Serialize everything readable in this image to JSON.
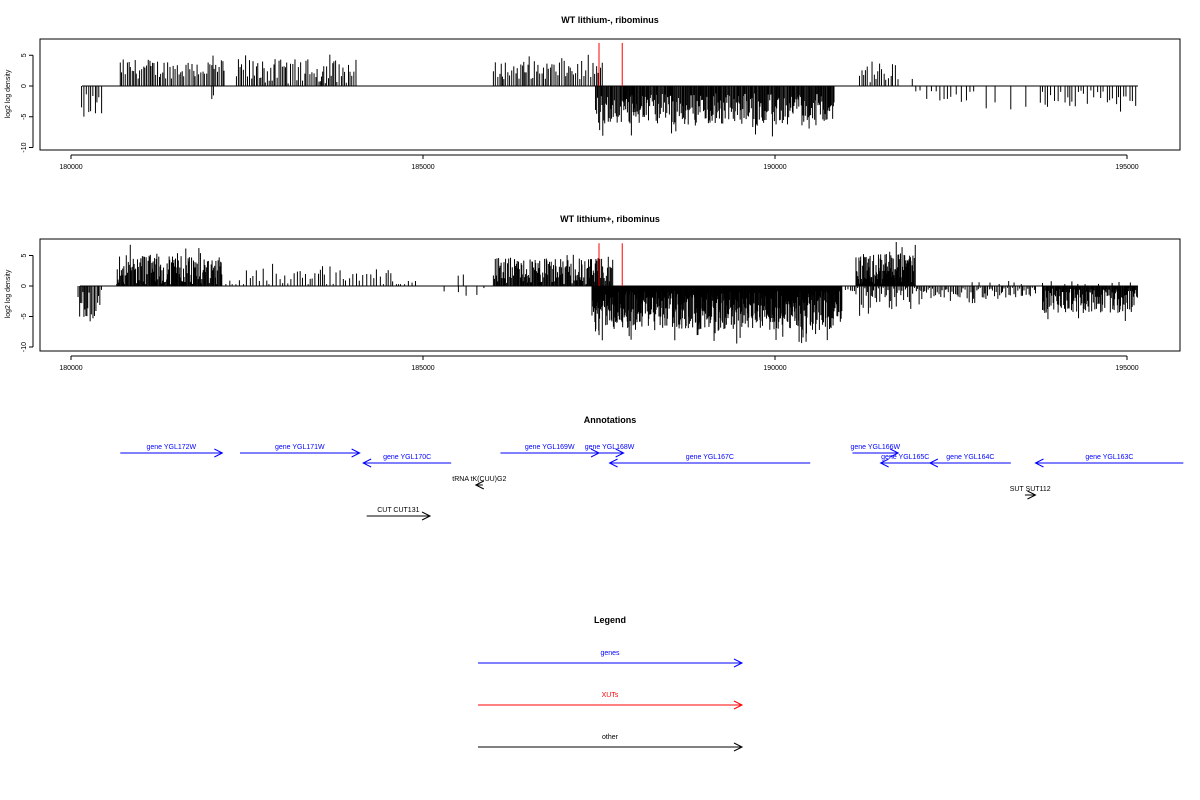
{
  "colors": {
    "genes": "#0000ff",
    "xuts": "#ff0000",
    "other": "#000000",
    "frame": "#000000"
  },
  "chart_data": [
    {
      "type": "bar",
      "title": "WT lithium-, ribominus",
      "ylabel": "log2 log density",
      "xlim": [
        179850,
        195700
      ],
      "ylim": [
        -10,
        7.5
      ],
      "xticks": [
        180000,
        185000,
        190000,
        195000
      ],
      "yticks": [
        5,
        0,
        -5,
        -10
      ],
      "grid": false,
      "markers": [
        {
          "x": 187500,
          "y": 7
        },
        {
          "x": 187830,
          "y": 7
        }
      ],
      "segments": [
        {
          "x0": 180150,
          "x1": 180450,
          "sign": -1,
          "mean": 2.8,
          "amp": 2.2,
          "step": 30
        },
        {
          "x0": 180700,
          "x1": 182200,
          "sign": 1,
          "mean": 2.8,
          "amp": 1.6,
          "step": 24
        },
        {
          "x0": 182000,
          "x1": 182050,
          "sign": -1,
          "mean": 1.6,
          "amp": 0.3,
          "step": 25
        },
        {
          "x0": 182350,
          "x1": 184050,
          "sign": 1,
          "mean": 2.4,
          "amp": 2.0,
          "step": 24
        },
        {
          "x0": 186000,
          "x1": 187550,
          "sign": 1,
          "mean": 2.6,
          "amp": 1.5,
          "step": 26
        },
        {
          "x0": 187450,
          "x1": 190850,
          "sign": -1,
          "mean": 3.8,
          "amp": 2.6,
          "step": 12
        },
        {
          "x0": 191200,
          "x1": 191750,
          "sign": 1,
          "mean": 2.2,
          "amp": 1.6,
          "step": 30
        },
        {
          "x0": 191950,
          "x1": 192000,
          "sign": 1,
          "mean": 1.2,
          "amp": 0.2,
          "step": 50
        },
        {
          "x0": 192000,
          "x1": 192900,
          "sign": -1,
          "mean": 1.6,
          "amp": 1.0,
          "step": 75
        },
        {
          "x0": 193000,
          "x1": 193800,
          "sign": -1,
          "mean": 2.2,
          "amp": 1.2,
          "step": 170
        },
        {
          "x0": 193800,
          "x1": 195150,
          "sign": -1,
          "mean": 2.0,
          "amp": 1.4,
          "step": 45
        }
      ]
    },
    {
      "type": "bar",
      "title": "WT lithium+, ribominus",
      "ylabel": "log2 log density",
      "xlim": [
        179850,
        195700
      ],
      "ylim": [
        -10,
        7.5
      ],
      "xticks": [
        180000,
        185000,
        190000,
        195000
      ],
      "yticks": [
        5,
        0,
        -5,
        -10
      ],
      "grid": false,
      "markers": [
        {
          "x": 187500,
          "y": 7
        },
        {
          "x": 187830,
          "y": 7
        }
      ],
      "segments": [
        {
          "x0": 180100,
          "x1": 180450,
          "sign": -1,
          "mean": 2.8,
          "amp": 2.4,
          "step": 18
        },
        {
          "x0": 180650,
          "x1": 182150,
          "sign": 1,
          "mean": 2.8,
          "amp": 2.6,
          "step": 11
        },
        {
          "x0": 182200,
          "x1": 184900,
          "sign": 1,
          "mean": 1.3,
          "amp": 1.4,
          "step": 42
        },
        {
          "x0": 185300,
          "x1": 185900,
          "sign": -1,
          "mean": 1.0,
          "amp": 0.8,
          "step": 150
        },
        {
          "x0": 185500,
          "x1": 185600,
          "sign": 1,
          "mean": 1.8,
          "amp": 0.2,
          "step": 60
        },
        {
          "x0": 186000,
          "x1": 187700,
          "sign": 1,
          "mean": 2.4,
          "amp": 2.2,
          "step": 12
        },
        {
          "x0": 187400,
          "x1": 190950,
          "sign": -1,
          "mean": 4.0,
          "amp": 3.2,
          "step": 7
        },
        {
          "x0": 191000,
          "x1": 191150,
          "sign": -1,
          "mean": 0.7,
          "amp": 0.3,
          "step": 30
        },
        {
          "x0": 191150,
          "x1": 192000,
          "sign": 1,
          "mean": 2.8,
          "amp": 2.6,
          "step": 8
        },
        {
          "x0": 191150,
          "x1": 192050,
          "sign": -1,
          "mean": 2.0,
          "amp": 1.8,
          "step": 20
        },
        {
          "x0": 192050,
          "x1": 193700,
          "sign": -1,
          "mean": 1.2,
          "amp": 1.0,
          "step": 22
        },
        {
          "x0": 192800,
          "x1": 193600,
          "sign": 1,
          "mean": 0.6,
          "amp": 0.4,
          "step": 120
        },
        {
          "x0": 193800,
          "x1": 195150,
          "sign": -1,
          "mean": 2.4,
          "amp": 2.0,
          "step": 10
        },
        {
          "x0": 193800,
          "x1": 195100,
          "sign": 1,
          "mean": 0.5,
          "amp": 0.3,
          "step": 140
        }
      ]
    }
  ],
  "annotations": {
    "title": "Annotations",
    "items": [
      {
        "label": "gene YGL172W",
        "x0": 180700,
        "x1": 182150,
        "dir": "right",
        "row": 0,
        "kind": "genes"
      },
      {
        "label": "gene YGL171W",
        "x0": 182400,
        "x1": 184100,
        "dir": "right",
        "row": 0,
        "kind": "genes"
      },
      {
        "label": "gene YGL170C",
        "x0": 184150,
        "x1": 185400,
        "dir": "left",
        "row": 1,
        "kind": "genes"
      },
      {
        "label": "gene YGL169W",
        "x0": 186100,
        "x1": 187500,
        "dir": "right",
        "row": 0,
        "kind": "genes"
      },
      {
        "label": "gene YGL168W",
        "x0": 187450,
        "x1": 187850,
        "dir": "right",
        "row": 0,
        "kind": "genes"
      },
      {
        "label": "gene YGL167C",
        "x0": 187650,
        "x1": 190500,
        "dir": "left",
        "row": 1,
        "kind": "genes"
      },
      {
        "label": "gene YGL166W",
        "x0": 191100,
        "x1": 191750,
        "dir": "right",
        "row": 0,
        "kind": "genes"
      },
      {
        "label": "gene YGL165C",
        "x0": 191500,
        "x1": 192200,
        "dir": "left",
        "row": 1,
        "kind": "genes"
      },
      {
        "label": "gene YGL164C",
        "x0": 192200,
        "x1": 193350,
        "dir": "left",
        "row": 1,
        "kind": "genes"
      },
      {
        "label": "gene YGL163C",
        "x0": 193700,
        "x1": 195800,
        "dir": "left",
        "row": 1,
        "kind": "genes"
      },
      {
        "label": "tRNA tK(CUU)G2",
        "x0": 185750,
        "x1": 185850,
        "dir": "left",
        "row": 2,
        "kind": "other"
      },
      {
        "label": "SUT SUT112",
        "x0": 193550,
        "x1": 193700,
        "dir": "right",
        "row": 3,
        "kind": "other"
      },
      {
        "label": "CUT CUT131",
        "x0": 184200,
        "x1": 185100,
        "dir": "right",
        "row": 4,
        "kind": "other"
      }
    ]
  },
  "legend": {
    "title": "Legend",
    "items": [
      {
        "label": "genes",
        "kind": "genes"
      },
      {
        "label": "XUTs",
        "kind": "xuts"
      },
      {
        "label": "other",
        "kind": "other"
      }
    ]
  }
}
